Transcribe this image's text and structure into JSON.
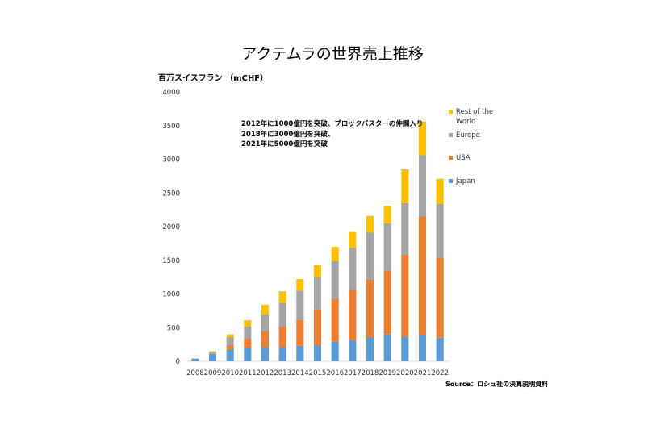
{
  "chart_data": {
    "type": "bar",
    "stacked": true,
    "title": "アクテムラの世界売上推移",
    "ylabel": "百万スイスフラン （mCHF）",
    "xlabel": "",
    "categories": [
      "2008",
      "2009",
      "2010",
      "2011",
      "2012",
      "2013",
      "2014",
      "2015",
      "2016",
      "2017",
      "2018",
      "2019",
      "2020",
      "2021",
      "2022"
    ],
    "ylim": [
      0,
      4000
    ],
    "yticks": [
      0,
      500,
      1000,
      1500,
      2000,
      2500,
      3000,
      3500,
      4000
    ],
    "grid": false,
    "legend_position": "right",
    "series": [
      {
        "name": "Japan",
        "color": "#5B9BD5",
        "values": [
          40,
          110,
          180,
          200,
          210,
          210,
          230,
          240,
          290,
          320,
          360,
          400,
          370,
          390,
          350
        ]
      },
      {
        "name": "USA",
        "color": "#ED7D31",
        "values": [
          0,
          0,
          60,
          140,
          240,
          310,
          390,
          530,
          640,
          740,
          850,
          950,
          1210,
          1760,
          1190
        ]
      },
      {
        "name": "Europe",
        "color": "#A5A5A5",
        "values": [
          0,
          30,
          120,
          180,
          250,
          350,
          430,
          480,
          560,
          630,
          700,
          700,
          770,
          910,
          800
        ]
      },
      {
        "name": "Rest of the World",
        "color": "#FFC000",
        "values": [
          0,
          10,
          40,
          90,
          140,
          170,
          170,
          180,
          210,
          230,
          250,
          260,
          500,
          500,
          370
        ]
      }
    ],
    "annotation": [
      "2012年に1000億円を突破、ブロックバスターの仲間入り",
      "2018年に3000億円を突破、",
      "2021年に5000億円を突破"
    ],
    "source": "Source：ロシュ社の決算説明資料"
  }
}
